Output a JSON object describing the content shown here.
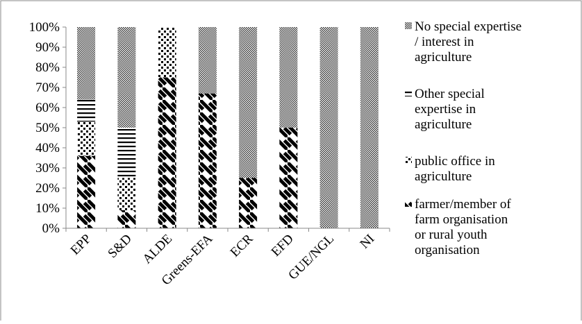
{
  "chart_data": {
    "type": "bar",
    "stacked": true,
    "percent_stacked": true,
    "categories": [
      "EPP",
      "S&D",
      "ALDE",
      "Greens-EFA",
      "ECR",
      "EFD",
      "GUE/NGL",
      "NI"
    ],
    "series": [
      {
        "name": "farmer/member of farm organisation or rural youth organisation",
        "pattern": "diagonal-stripes",
        "values": [
          36,
          9,
          75,
          67,
          25,
          50,
          0,
          0
        ]
      },
      {
        "name": "public office in agriculture",
        "pattern": "dots",
        "values": [
          17,
          16,
          25,
          0,
          0,
          0,
          0,
          0
        ]
      },
      {
        "name": "Other special expertise in agriculture",
        "pattern": "horizontal-lines",
        "values": [
          11,
          25,
          0,
          0,
          0,
          0,
          0,
          0
        ]
      },
      {
        "name": "No special expertise / interest in agriculture",
        "pattern": "dense-checker",
        "values": [
          36,
          50,
          0,
          33,
          75,
          50,
          100,
          100
        ]
      }
    ],
    "legend_order": [
      3,
      2,
      1,
      0
    ],
    "legend_lines": [
      [
        "No special expertise",
        "/ interest in",
        "agriculture"
      ],
      [
        "Other special",
        "expertise in",
        "agriculture"
      ],
      [
        "public office in",
        "agriculture"
      ],
      [
        "farmer/member of",
        "farm organisation",
        "or rural youth",
        "organisation"
      ]
    ],
    "y_ticks": [
      "0%",
      "10%",
      "20%",
      "30%",
      "40%",
      "50%",
      "60%",
      "70%",
      "80%",
      "90%",
      "100%"
    ],
    "ylim": [
      0,
      100
    ],
    "grid": false,
    "legend_position": "right",
    "title": "",
    "xlabel": "",
    "ylabel": ""
  }
}
